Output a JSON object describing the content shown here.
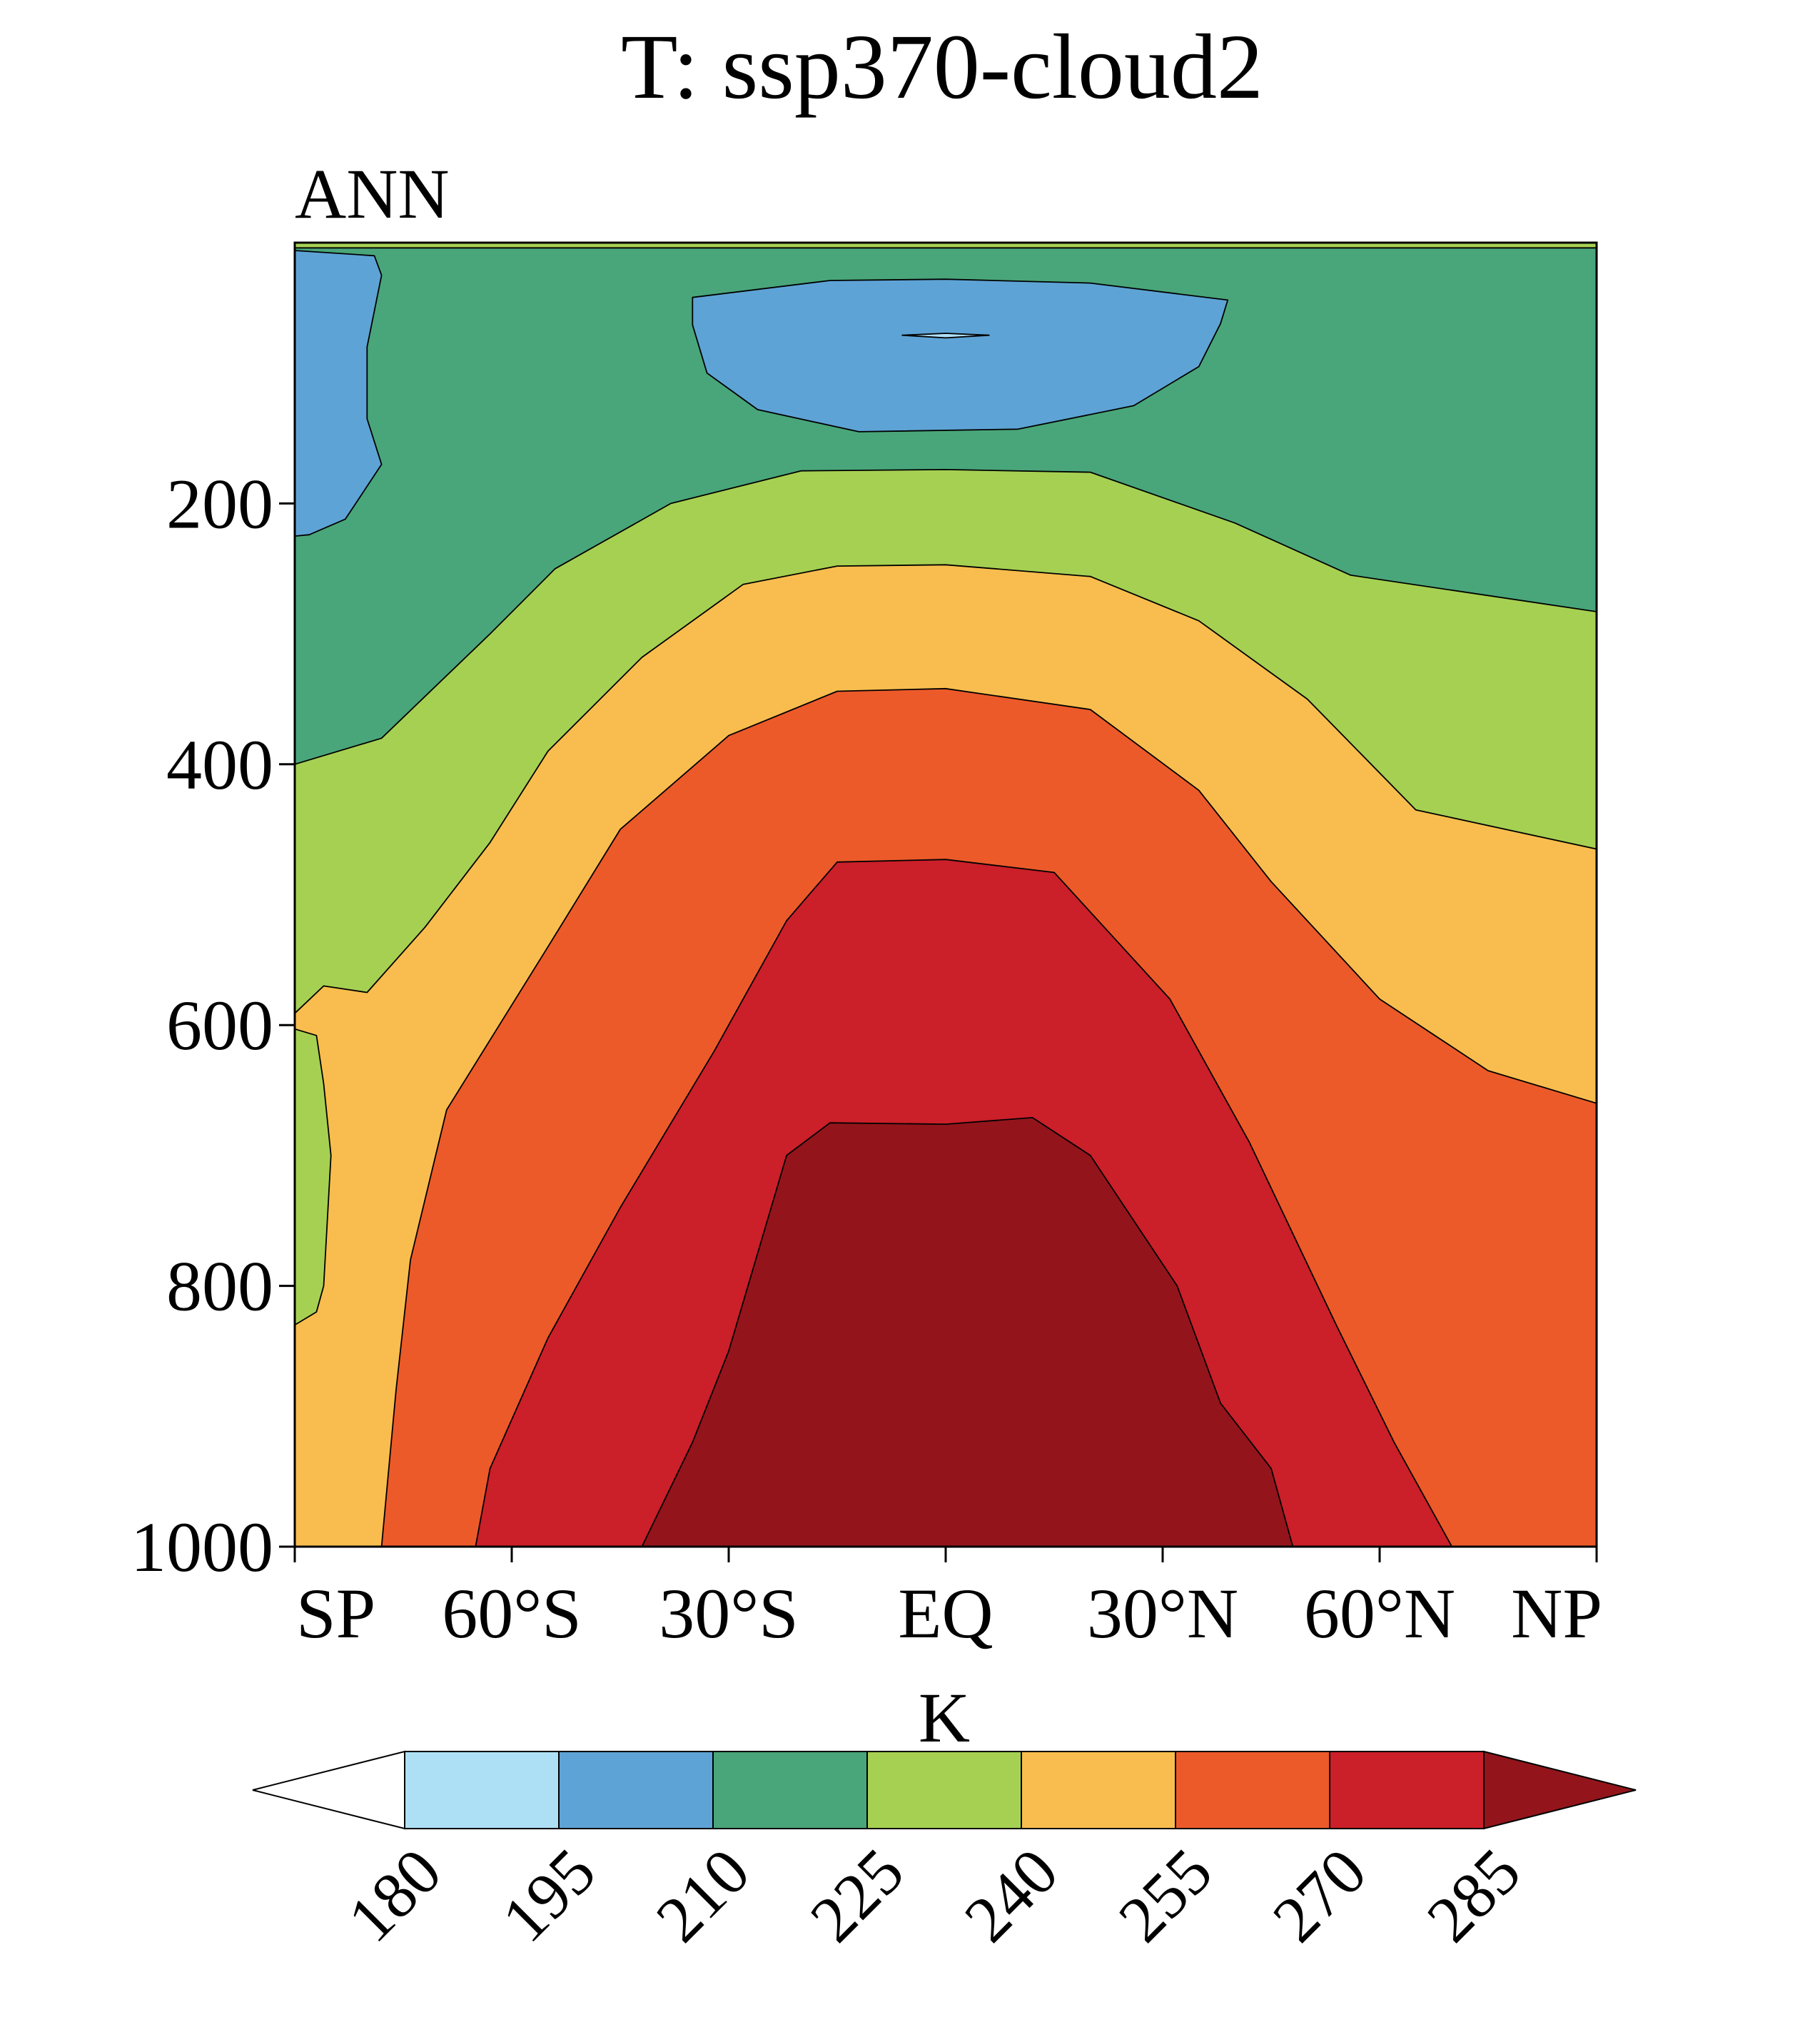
{
  "chart_data": {
    "type": "contour",
    "title": "T: ssp370-cloud2",
    "subtitle": "ANN",
    "xlabel": "",
    "ylabel": "",
    "x_ticks": [
      {
        "lat": -90,
        "label": "SP"
      },
      {
        "lat": -60,
        "label": "60°S"
      },
      {
        "lat": -30,
        "label": "30°S"
      },
      {
        "lat": 0,
        "label": "EQ"
      },
      {
        "lat": 30,
        "label": "30°N"
      },
      {
        "lat": 60,
        "label": "60°N"
      },
      {
        "lat": 90,
        "label": "NP"
      }
    ],
    "y_ticks": [
      {
        "p": 200,
        "label": "200"
      },
      {
        "p": 400,
        "label": "400"
      },
      {
        "p": 600,
        "label": "600"
      },
      {
        "p": 800,
        "label": "800"
      },
      {
        "p": 1000,
        "label": "1000"
      }
    ],
    "xlim": [
      -90,
      90
    ],
    "ylim": [
      1000,
      0
    ],
    "y_reversed": true,
    "contour_levels": [
      180,
      195,
      210,
      225,
      240,
      255,
      270,
      285
    ],
    "level_colors": [
      "#ffffff",
      "#aee0f5",
      "#5ea3d6",
      "#49a67a",
      "#a6d052",
      "#f8bd4e",
      "#ec5a2a",
      "#cb1f29",
      "#93151b"
    ],
    "colorbar": {
      "label": "K",
      "orientation": "horizontal",
      "position": "bottom",
      "extend": "both",
      "tick_labels": [
        "180",
        "195",
        "210",
        "225",
        "240",
        "255",
        "270",
        "285"
      ]
    },
    "regions": [
      {
        "range": "210-225",
        "color": "#49a67a",
        "outline": [
          [
            -90,
            0
          ],
          [
            90,
            0
          ],
          [
            90,
            1000
          ],
          [
            -90,
            1000
          ]
        ]
      },
      {
        "range": "225-240",
        "color": "#a6d052",
        "outline": [
          [
            -90,
            400
          ],
          [
            -78,
            380
          ],
          [
            -63,
            300
          ],
          [
            -54,
            250
          ],
          [
            -38,
            200
          ],
          [
            -20,
            175
          ],
          [
            0,
            174
          ],
          [
            20,
            176
          ],
          [
            40,
            215
          ],
          [
            56,
            255
          ],
          [
            90,
            283
          ],
          [
            90,
            1000
          ],
          [
            -90,
            1000
          ]
        ]
      },
      {
        "range": "225-240",
        "color": "#a6d052",
        "outline": [
          [
            -90,
            0
          ],
          [
            90,
            0
          ],
          [
            90,
            4
          ],
          [
            -90,
            4
          ]
        ]
      },
      {
        "range": "195-210",
        "color": "#5ea3d6",
        "outline": [
          [
            -90,
            6
          ],
          [
            -79,
            10
          ],
          [
            -78,
            25
          ],
          [
            -80,
            80
          ],
          [
            -80,
            135
          ],
          [
            -78,
            170
          ],
          [
            -83,
            212
          ],
          [
            -88,
            224
          ],
          [
            -90,
            225
          ]
        ]
      },
      {
        "range": "195-210",
        "color": "#5ea3d6",
        "outline": [
          [
            -35,
            42
          ],
          [
            -16,
            29
          ],
          [
            0,
            28
          ],
          [
            20,
            31
          ],
          [
            39,
            44
          ],
          [
            38,
            62
          ],
          [
            35,
            95
          ],
          [
            26,
            125
          ],
          [
            10,
            143
          ],
          [
            -12,
            145
          ],
          [
            -26,
            128
          ],
          [
            -33,
            100
          ],
          [
            -35,
            63
          ]
        ]
      },
      {
        "range": "180-195",
        "color": "#aee0f5",
        "outline": [
          [
            -6,
            71
          ],
          [
            0,
            69.5
          ],
          [
            6,
            71
          ],
          [
            0,
            73
          ]
        ]
      },
      {
        "range": "240-255",
        "color": "#f8bd4e",
        "outline": [
          [
            -90,
            591
          ],
          [
            -86,
            570
          ],
          [
            -80,
            575
          ],
          [
            -72,
            525
          ],
          [
            -63,
            460
          ],
          [
            -55,
            390
          ],
          [
            -42,
            318
          ],
          [
            -28,
            262
          ],
          [
            -15,
            248
          ],
          [
            0,
            247
          ],
          [
            20,
            256
          ],
          [
            35,
            290
          ],
          [
            50,
            350
          ],
          [
            65,
            435
          ],
          [
            90,
            465
          ],
          [
            90,
            1000
          ],
          [
            -90,
            1000
          ]
        ]
      },
      {
        "range": "225-240",
        "color": "#a6d052",
        "outline": [
          [
            -90,
            603
          ],
          [
            -87,
            608
          ],
          [
            -86,
            645
          ],
          [
            -85,
            700
          ],
          [
            -86,
            800
          ],
          [
            -87,
            820
          ],
          [
            -90,
            830
          ]
        ]
      },
      {
        "range": "255-270",
        "color": "#ec5a2a",
        "outline": [
          [
            -78,
            1000
          ],
          [
            -76,
            880
          ],
          [
            -74,
            780
          ],
          [
            -69,
            665
          ],
          [
            -55,
            540
          ],
          [
            -45,
            450
          ],
          [
            -30,
            378
          ],
          [
            -15,
            344
          ],
          [
            0,
            342
          ],
          [
            20,
            358
          ],
          [
            35,
            420
          ],
          [
            45,
            490
          ],
          [
            60,
            580
          ],
          [
            75,
            635
          ],
          [
            90,
            660
          ],
          [
            90,
            1000
          ]
        ]
      },
      {
        "range": "270-285",
        "color": "#cb1f29",
        "outline": [
          [
            -65,
            1000
          ],
          [
            -63,
            940
          ],
          [
            -55,
            840
          ],
          [
            -45,
            740
          ],
          [
            -32,
            620
          ],
          [
            -22,
            520
          ],
          [
            -15,
            475
          ],
          [
            0,
            473
          ],
          [
            15,
            483
          ],
          [
            31,
            580
          ],
          [
            42,
            690
          ],
          [
            54,
            830
          ],
          [
            62,
            920
          ],
          [
            70,
            1000
          ]
        ]
      },
      {
        "range": "285+",
        "color": "#93151b",
        "outline": [
          [
            -42,
            1000
          ],
          [
            -35,
            920
          ],
          [
            -30,
            850
          ],
          [
            -22,
            700
          ],
          [
            -16,
            675
          ],
          [
            0,
            676
          ],
          [
            12,
            671
          ],
          [
            20,
            700
          ],
          [
            32,
            800
          ],
          [
            38,
            890
          ],
          [
            45,
            940
          ],
          [
            48,
            1000
          ]
        ]
      }
    ]
  }
}
